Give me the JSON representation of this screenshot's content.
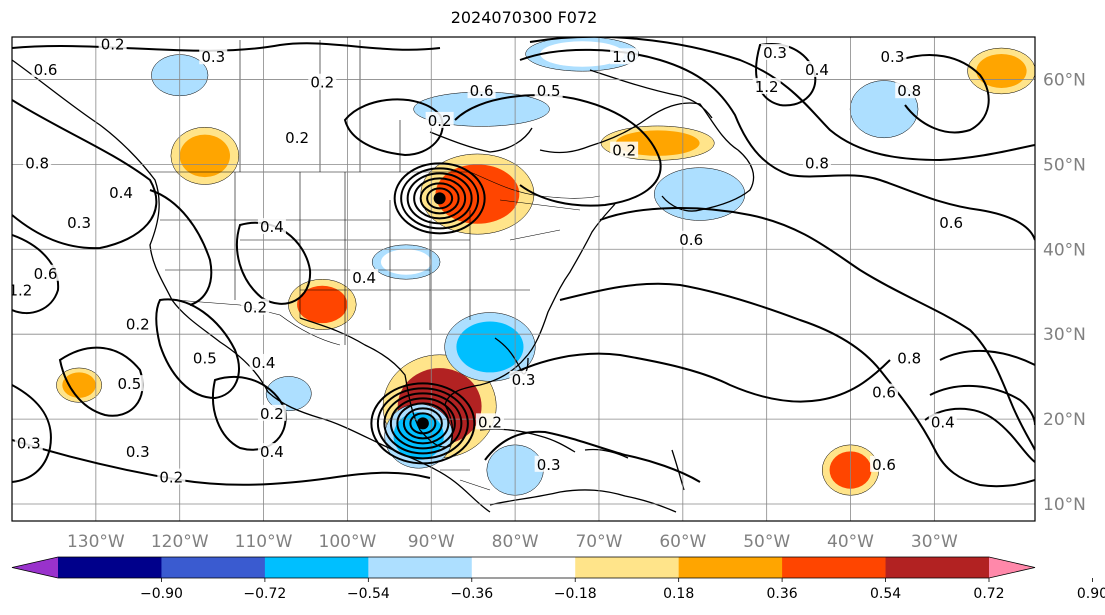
{
  "title": "2024070300 F072",
  "map": {
    "lon_range": [
      -140,
      -18
    ],
    "lat_range": [
      8,
      65
    ],
    "lon_ticks": [
      {
        "lon": -130,
        "label": "130°W"
      },
      {
        "lon": -120,
        "label": "120°W"
      },
      {
        "lon": -110,
        "label": "110°W"
      },
      {
        "lon": -100,
        "label": "100°W"
      },
      {
        "lon": -90,
        "label": "90°W"
      },
      {
        "lon": -80,
        "label": "80°W"
      },
      {
        "lon": -70,
        "label": "70°W"
      },
      {
        "lon": -60,
        "label": "60°W"
      },
      {
        "lon": -50,
        "label": "50°W"
      },
      {
        "lon": -40,
        "label": "40°W"
      },
      {
        "lon": -30,
        "label": "30°W"
      }
    ],
    "lat_ticks": [
      {
        "lat": 10,
        "label": "10°N"
      },
      {
        "lat": 20,
        "label": "20°N"
      },
      {
        "lat": 30,
        "label": "30°N"
      },
      {
        "lat": 40,
        "label": "40°N"
      },
      {
        "lat": 50,
        "label": "50°N"
      },
      {
        "lat": 60,
        "label": "60°N"
      }
    ],
    "grid": true
  },
  "colorbar": {
    "ticks": [
      "−0.90",
      "−0.72",
      "−0.54",
      "−0.36",
      "−0.18",
      "0.18",
      "0.36",
      "0.54",
      "0.72",
      "0.90"
    ],
    "colors": [
      "#9932cc",
      "#00008b",
      "#3a5bd0",
      "#00bfff",
      "#addfff",
      "#ffffff",
      "#ffe48a",
      "#ffa500",
      "#ff4500",
      "#b22222",
      "#ff88aa"
    ]
  },
  "shaded_features": [
    {
      "lon": -89,
      "lat": 21.5,
      "rx": 5,
      "ry": 4.5,
      "level": 0.72
    },
    {
      "lon": -91.5,
      "lat": 18,
      "rx": 3,
      "ry": 2.8,
      "level": -0.54
    },
    {
      "lon": -84.5,
      "lat": 46.5,
      "rx": 5,
      "ry": 3.5,
      "level": 0.54
    },
    {
      "lon": -63,
      "lat": 52.5,
      "rx": 5,
      "ry": 1.5,
      "level": 0.36
    },
    {
      "lon": -103,
      "lat": 33.5,
      "rx": 3,
      "ry": 2.2,
      "level": 0.54
    },
    {
      "lon": -117,
      "lat": 51,
      "rx": 3,
      "ry": 2.5,
      "level": 0.36
    },
    {
      "lon": -40,
      "lat": 14,
      "rx": 2.5,
      "ry": 2.2,
      "level": 0.54
    },
    {
      "lon": -83,
      "lat": 28.5,
      "rx": 4,
      "ry": 3,
      "level": -0.54
    },
    {
      "lon": -80,
      "lat": 14,
      "rx": 2.5,
      "ry": 2.2,
      "level": -0.36
    },
    {
      "lon": -84,
      "lat": 56.5,
      "rx": 6,
      "ry": 1.5,
      "level": -0.36
    },
    {
      "lon": -58,
      "lat": 46.5,
      "rx": 4,
      "ry": 2.3,
      "level": -0.36
    },
    {
      "lon": -36,
      "lat": 56.5,
      "rx": 3,
      "ry": 2.5,
      "level": -0.36
    },
    {
      "lon": -132,
      "lat": 24,
      "rx": 2,
      "ry": 1.5,
      "level": 0.36
    },
    {
      "lon": -120,
      "lat": 60.5,
      "rx": 2.5,
      "ry": 1.8,
      "level": -0.36
    },
    {
      "lon": -107,
      "lat": 23,
      "rx": 2,
      "ry": 1.5,
      "level": -0.36
    },
    {
      "lon": -93,
      "lat": 38.5,
      "rx": 3,
      "ry": 1.5,
      "level": -0.18
    },
    {
      "lon": -72,
      "lat": 63,
      "rx": 5,
      "ry": 1.5,
      "level": -0.18
    },
    {
      "lon": -22,
      "lat": 61,
      "rx": 3,
      "ry": 2,
      "level": 0.36
    }
  ],
  "contour_labels": [
    {
      "text": "0.2",
      "lon": -128,
      "lat": 64
    },
    {
      "text": "0.3",
      "lon": -116,
      "lat": 62.5
    },
    {
      "text": "0.2",
      "lon": -103,
      "lat": 59.5
    },
    {
      "text": "0.6",
      "lon": -136,
      "lat": 61
    },
    {
      "text": "0.8",
      "lon": -137,
      "lat": 50
    },
    {
      "text": "0.4",
      "lon": -127,
      "lat": 46.5
    },
    {
      "text": "0.3",
      "lon": -132,
      "lat": 43
    },
    {
      "text": "0.6",
      "lon": -136,
      "lat": 37
    },
    {
      "text": "1.2",
      "lon": -139,
      "lat": 35
    },
    {
      "text": "0.2",
      "lon": -106,
      "lat": 53
    },
    {
      "text": "0.2",
      "lon": -89,
      "lat": 55
    },
    {
      "text": "0.6",
      "lon": -84,
      "lat": 58.5
    },
    {
      "text": "0.5",
      "lon": -76,
      "lat": 58.5
    },
    {
      "text": "0.2",
      "lon": -67,
      "lat": 51.5
    },
    {
      "text": "1.0",
      "lon": -67,
      "lat": 62.5
    },
    {
      "text": "1.2",
      "lon": -50,
      "lat": 59
    },
    {
      "text": "0.3",
      "lon": -49,
      "lat": 63
    },
    {
      "text": "0.4",
      "lon": -44,
      "lat": 61
    },
    {
      "text": "0.3",
      "lon": -35,
      "lat": 62.5
    },
    {
      "text": "0.8",
      "lon": -33,
      "lat": 58.5
    },
    {
      "text": "0.8",
      "lon": -44,
      "lat": 50
    },
    {
      "text": "0.6",
      "lon": -28,
      "lat": 43
    },
    {
      "text": "0.6",
      "lon": -59,
      "lat": 41
    },
    {
      "text": "0.4",
      "lon": -109,
      "lat": 42.5
    },
    {
      "text": "0.4",
      "lon": -98,
      "lat": 36.5
    },
    {
      "text": "0.2",
      "lon": -111,
      "lat": 33
    },
    {
      "text": "0.2",
      "lon": -125,
      "lat": 31
    },
    {
      "text": "0.5",
      "lon": -117,
      "lat": 27
    },
    {
      "text": "0.4",
      "lon": -110,
      "lat": 26.5
    },
    {
      "text": "0.5",
      "lon": -126,
      "lat": 24
    },
    {
      "text": "0.2",
      "lon": -109,
      "lat": 20.5
    },
    {
      "text": "0.4",
      "lon": -109,
      "lat": 16
    },
    {
      "text": "0.3",
      "lon": -125,
      "lat": 16
    },
    {
      "text": "0.2",
      "lon": -121,
      "lat": 13
    },
    {
      "text": "0.3",
      "lon": -138,
      "lat": 17
    },
    {
      "text": "0.3",
      "lon": -76,
      "lat": 14.5
    },
    {
      "text": "0.2",
      "lon": -83,
      "lat": 19.5
    },
    {
      "text": "0.3",
      "lon": -79,
      "lat": 24.5
    },
    {
      "text": "0.6",
      "lon": -36,
      "lat": 14.5
    },
    {
      "text": "0.4",
      "lon": -29,
      "lat": 19.5
    },
    {
      "text": "0.8",
      "lon": -33,
      "lat": 27
    },
    {
      "text": "0.6",
      "lon": -36,
      "lat": 23
    }
  ],
  "cyclones": [
    {
      "lon": -89,
      "lat": 46,
      "rings": 6
    },
    {
      "lon": -91,
      "lat": 19.5,
      "rings": 7
    }
  ]
}
